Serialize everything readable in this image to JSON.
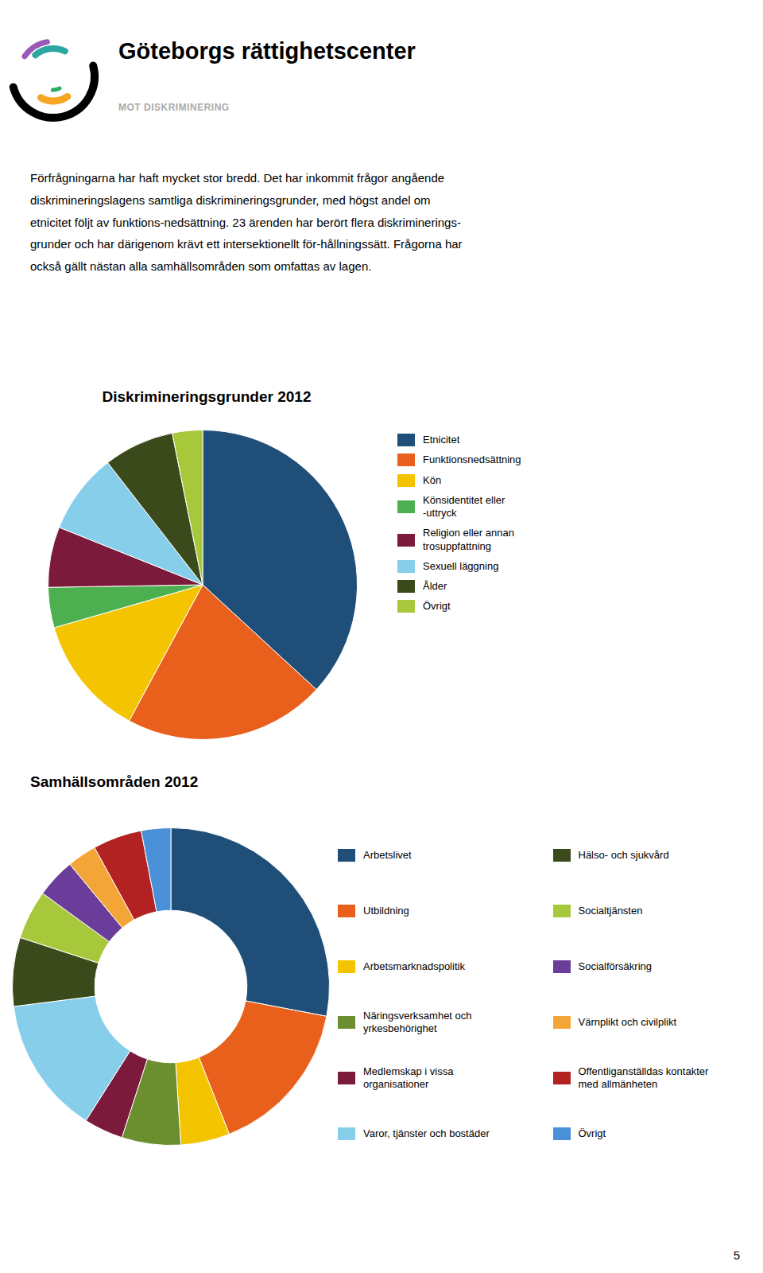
{
  "title": "Göteborgs rättighetscenter",
  "subtitle": "MOT DISKRIMINERING",
  "annotations": [
    "Förfrågningarna har haft mycket stor bredd. Det har inkommit frågor angående\ndiskrimineringslagens samtliga diskrimineringsgrunder, med högst andel om\netnicitet följt av funktions-nedsättning. 23 ärenden har berört flera diskriminerings-\ngrunder och har därigenom krävt ett intersektionellt för-hållningssätt. Frågorna har\nockså gällt nästan alla samhällsområden som omfattas av lagen.",
    "5"
  ],
  "chart_data": [
    {
      "type": "pie",
      "title": "Diskrimineringsgrunder 2012",
      "categories": [
        "Etnicitet",
        "Funktionsnedsättning",
        "Kön",
        "Könsidentitet eller\n-uttryck",
        "Religion eller annan\ntrosuppfattning",
        "Sexuell läggning",
        "Ålder",
        "Övrigt"
      ],
      "values": [
        35,
        20,
        12,
        4,
        6,
        8,
        7,
        3
      ],
      "colors": [
        "#1F4E79",
        "#E8601C",
        "#F5C400",
        "#4CAF50",
        "#7B1A3B",
        "#87CEEB",
        "#3B4A1A",
        "#A8C83C"
      ],
      "legend": "right"
    },
    {
      "type": "donut",
      "title": "Samhällsområden 2012",
      "categories": [
        "Arbetslivet",
        "Utbildning",
        "Arbetsmarknadspolitik",
        "Näringsverksamhet och\nyrkesbehörighet",
        "Medlemskap i vissa\norganisationer",
        "Varor, tjänster och bostäder",
        "Hälso- och sjukvård",
        "Socialtjänsten",
        "Socialförsäkring",
        "Värnplikt och civilplikt",
        "Offentliganställdas kontakter\nmed allmänheten",
        "Övrigt"
      ],
      "values": [
        28,
        16,
        5,
        6,
        4,
        14,
        7,
        5,
        4,
        3,
        5,
        3
      ],
      "colors": [
        "#1F4E79",
        "#E8601C",
        "#F5C400",
        "#6B8E2F",
        "#7B1A3B",
        "#87CEEB",
        "#3B4A1A",
        "#A8C83C",
        "#6A3D9A",
        "#F4A537",
        "#B22222",
        "#4A90D9"
      ],
      "legend": "right"
    }
  ]
}
